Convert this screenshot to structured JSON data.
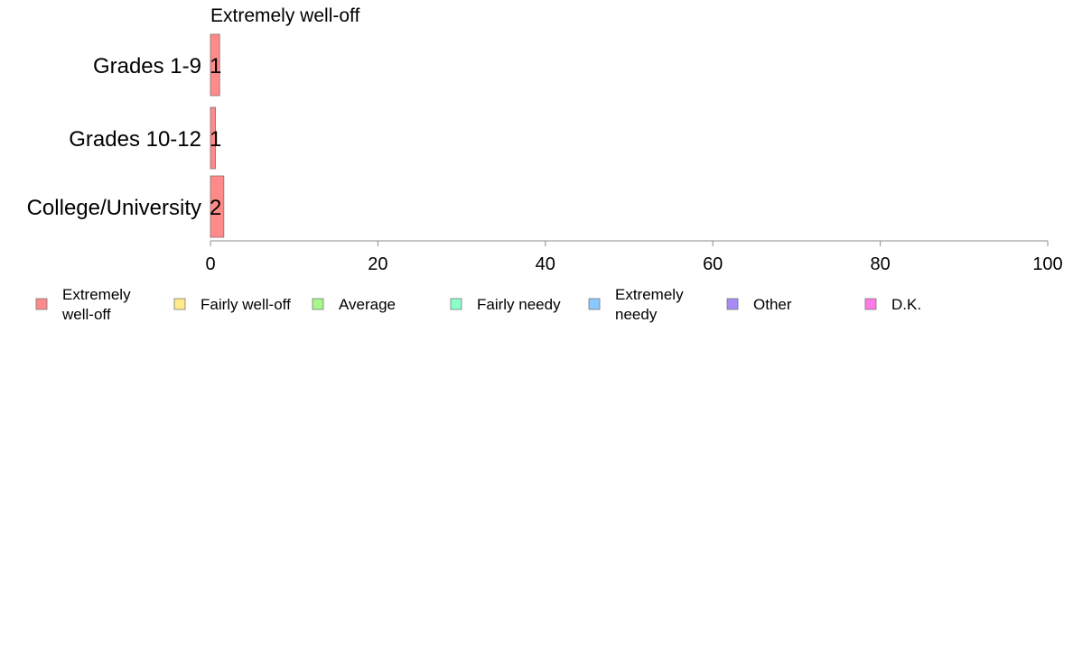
{
  "chart_data": {
    "type": "bar",
    "orientation": "horizontal",
    "title": "Extremely well-off",
    "categories": [
      "Grades 1-9",
      "Grades 10-12",
      "College/University"
    ],
    "series": [
      {
        "name": "Extremely well-off",
        "color": "#ff8a8a",
        "values": [
          1.1,
          0.6,
          1.6
        ],
        "labels": [
          "1",
          "1",
          "2"
        ]
      }
    ],
    "xlim": [
      0,
      100
    ],
    "xticks": [
      0,
      20,
      40,
      60,
      80,
      100
    ],
    "grid": false,
    "legend_position": "bottom",
    "legend": [
      {
        "label": "Extremely well-off",
        "color": "#ff8a8a"
      },
      {
        "label": "Fairly well-off",
        "color": "#ffeb8a"
      },
      {
        "label": "Average",
        "color": "#a8f78a"
      },
      {
        "label": "Fairly needy",
        "color": "#8affc8"
      },
      {
        "label": "Extremely needy",
        "color": "#8ac8ff"
      },
      {
        "label": "Other",
        "color": "#a88af7"
      },
      {
        "label": "D.K.",
        "color": "#ff7ae8"
      }
    ]
  }
}
